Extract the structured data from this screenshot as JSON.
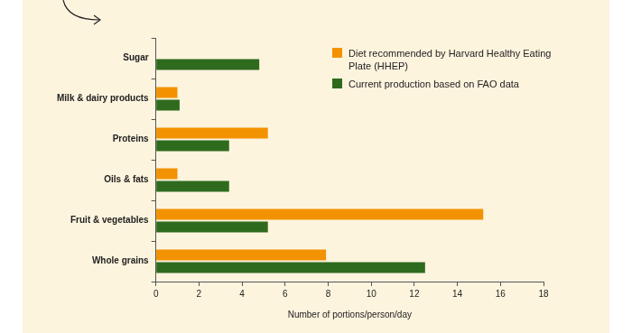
{
  "chart_data": {
    "type": "bar",
    "orientation": "horizontal",
    "x_label": "Number of portions/person/day",
    "categories": [
      "Sugar",
      "Milk & dairy products",
      "Proteins",
      "Oils & fats",
      "Fruit & vegetables",
      "Whole grains"
    ],
    "series": [
      {
        "name": "Diet recommended by Harvard Healthy Eating Plate (HHEP)",
        "color": "#f39200",
        "values": [
          0,
          1.0,
          5.2,
          1.0,
          15.2,
          7.9
        ]
      },
      {
        "name": "Current production based on FAO data",
        "color": "#2f6b1e",
        "values": [
          4.8,
          1.1,
          3.4,
          3.4,
          5.2,
          12.5
        ]
      }
    ],
    "xlim": [
      0,
      18
    ],
    "xticks": [
      0,
      2,
      4,
      6,
      8,
      10,
      12,
      14,
      16,
      18
    ],
    "grid": false,
    "legend": "upper right"
  }
}
